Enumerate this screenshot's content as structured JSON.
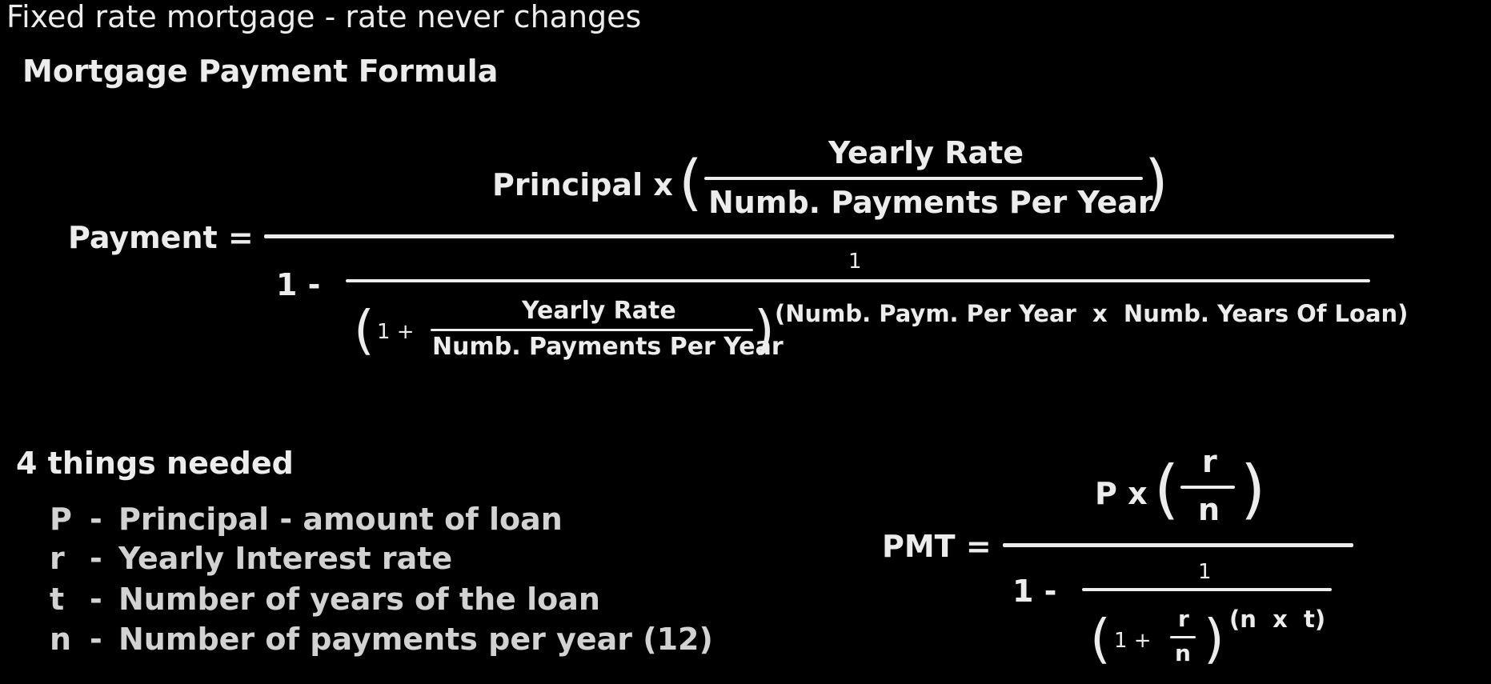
{
  "header": {
    "title": "Fixed rate mortgage - rate never changes",
    "subtitle": "Mortgage Payment Formula"
  },
  "formula_long": {
    "lhs": "Payment =",
    "numerator_prefix": "Principal x",
    "num_frac_top": "Yearly Rate",
    "num_frac_bottom": "Numb. Payments Per Year",
    "denom_one_minus": "1 -",
    "inner_numerator": "1",
    "inner_one_plus": "1 +",
    "inner_frac_top": "Yearly Rate",
    "inner_frac_bottom": "Numb. Payments Per Year",
    "exponent": "(Numb. Paym. Per Year  x  Numb. Years Of Loan)"
  },
  "needed": {
    "heading": "4 things needed",
    "items": [
      {
        "symbol": "P",
        "dash": "-",
        "desc": "Principal - amount of loan"
      },
      {
        "symbol": "r",
        "dash": "-",
        "desc": "Yearly Interest rate"
      },
      {
        "symbol": "t",
        "dash": "-",
        "desc": "Number of years of the loan"
      },
      {
        "symbol": "n",
        "dash": "-",
        "desc": "Number of payments per year (12)"
      }
    ]
  },
  "formula_short": {
    "lhs": "PMT =",
    "numerator_prefix": "P x",
    "num_frac_top": "r",
    "num_frac_bottom": "n",
    "denom_one_minus": "1 -",
    "inner_numerator": "1",
    "inner_one_plus": "1 +",
    "inner_frac_top": "r",
    "inner_frac_bottom": "n",
    "exponent": "(n  x  t)"
  }
}
